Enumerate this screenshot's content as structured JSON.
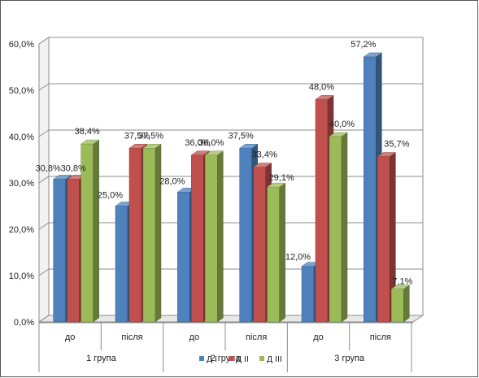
{
  "chart_data": {
    "type": "bar",
    "title": "",
    "xlabel": "",
    "ylabel": "",
    "ylim": [
      0,
      60
    ],
    "y_ticks": [
      "0,0%",
      "10,0%",
      "20,0%",
      "30,0%",
      "40,0%",
      "50,0%",
      "60,0%"
    ],
    "grid": true,
    "three_d": true,
    "legend_position": "bottom",
    "categories": [
      "до",
      "після",
      "до",
      "після",
      "до",
      "після"
    ],
    "groups": [
      {
        "label": "1 група",
        "span": 2
      },
      {
        "label": "2 група",
        "span": 2
      },
      {
        "label": "3 група",
        "span": 2
      }
    ],
    "series": [
      {
        "name": "Д І",
        "color": "#4f81bd",
        "values": [
          30.8,
          25.0,
          28.0,
          37.5,
          12.0,
          57.2
        ],
        "labels": [
          "30,8%",
          "25,0%",
          "28,0%",
          "37,5%",
          "12,0%",
          "57,2%"
        ]
      },
      {
        "name": "Д ІІ",
        "color": "#c0504d",
        "values": [
          30.8,
          37.5,
          36.0,
          33.4,
          48.0,
          35.7
        ],
        "labels": [
          "30,8%",
          "37,5%",
          "36,0%",
          "33,4%",
          "48,0%",
          "35,7%"
        ]
      },
      {
        "name": "Д ІІІ",
        "color": "#9bbb59",
        "values": [
          38.4,
          37.5,
          36.0,
          29.1,
          40.0,
          7.1
        ],
        "labels": [
          "38,4%",
          "37,5%",
          "36,0%",
          "29,1%",
          "40,0%",
          "7,1%"
        ]
      }
    ]
  }
}
